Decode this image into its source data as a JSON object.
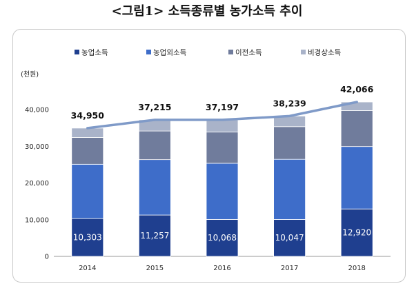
{
  "title": "<그림1> 소득종류별 농가소득 추이",
  "chart_data": {
    "type": "bar",
    "stacked": true,
    "unit_label": "(천원)",
    "categories": [
      "2014",
      "2015",
      "2016",
      "2017",
      "2018"
    ],
    "series": [
      {
        "name": "농업소득",
        "values": [
          10303,
          11257,
          10068,
          10047,
          12920
        ],
        "color": "#1f3f8f"
      },
      {
        "name": "농업외소득",
        "values": [
          14800,
          15100,
          15300,
          16400,
          17000
        ],
        "color": "#3e6dc9"
      },
      {
        "name": "이전소득",
        "values": [
          7300,
          7800,
          8500,
          8900,
          9800
        ],
        "color": "#707c9c"
      },
      {
        "name": "비경상소득",
        "values": [
          2547,
          3058,
          3329,
          2892,
          2346
        ],
        "color": "#a9b3c9"
      }
    ],
    "totals": [
      34950,
      37215,
      37197,
      38239,
      42066
    ],
    "total_labels": [
      "34,950",
      "37,215",
      "37,197",
      "38,239",
      "42,066"
    ],
    "farm_labels": [
      "10,303",
      "11,257",
      "10,068",
      "10,047",
      "12,920"
    ],
    "ylim": [
      0,
      40000
    ],
    "yticks": [
      0,
      10000,
      20000,
      30000,
      40000
    ],
    "ytick_labels": [
      "0",
      "10,000",
      "20,000",
      "30,000",
      "40,000"
    ],
    "trend_line_color": "#7f9ac8",
    "legend_placement": "top"
  }
}
